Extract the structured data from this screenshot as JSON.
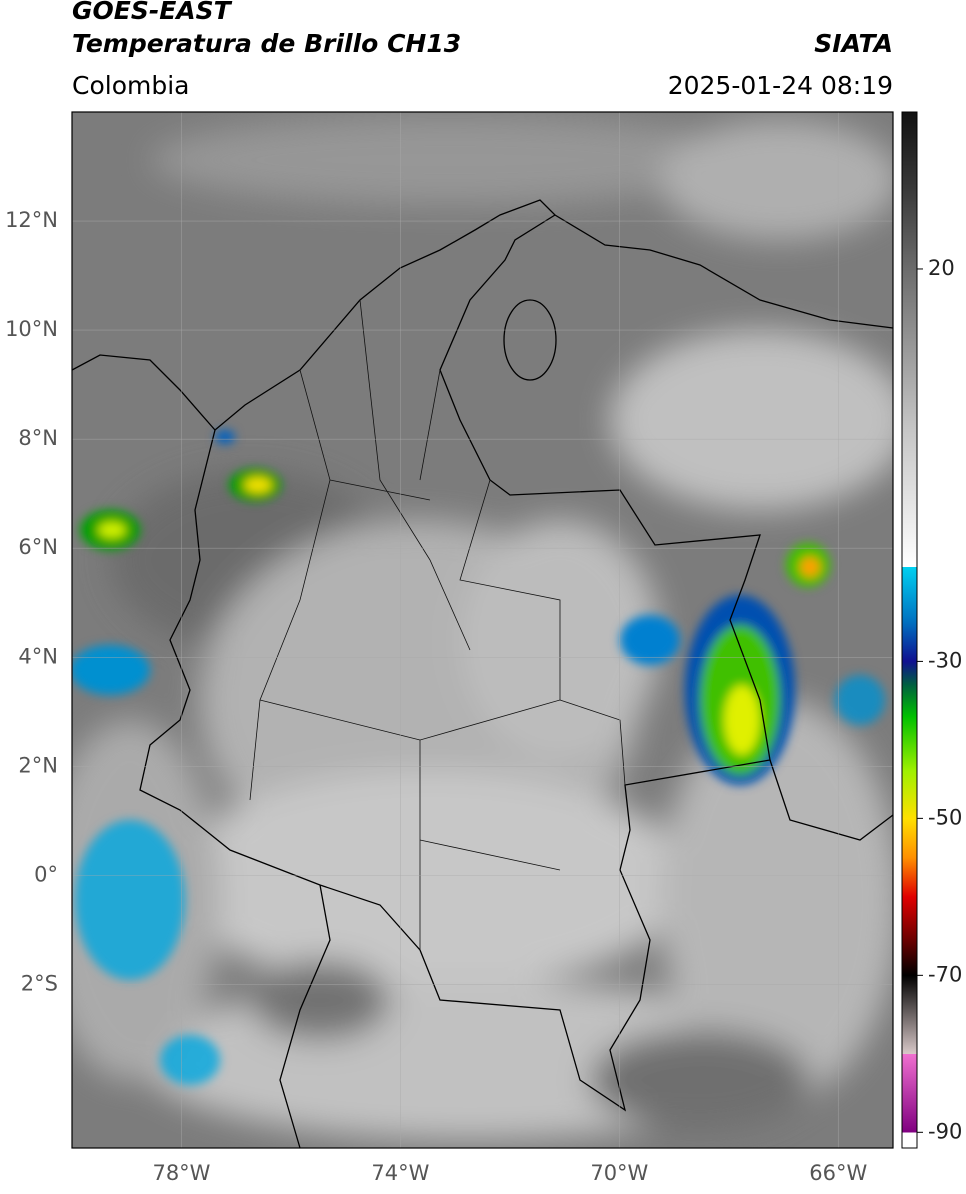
{
  "header": {
    "title": "GOES-EAST",
    "subtitle": "Temperatura de Brillo CH13",
    "source": "SIATA",
    "region": "Colombia",
    "datetime": "2025-01-24 08:19"
  },
  "map": {
    "lon_range": [
      -80,
      -65
    ],
    "lat_range": [
      -5,
      14
    ],
    "grid": true,
    "lat_ticks": [
      {
        "value": 12,
        "label": "12°N"
      },
      {
        "value": 10,
        "label": "10°N"
      },
      {
        "value": 8,
        "label": "8°N"
      },
      {
        "value": 6,
        "label": "6°N"
      },
      {
        "value": 4,
        "label": "4°N"
      },
      {
        "value": 2,
        "label": "2°N"
      },
      {
        "value": 0,
        "label": "0°"
      },
      {
        "value": -2,
        "label": "2°S"
      }
    ],
    "lon_ticks": [
      {
        "value": -78,
        "label": "78°W"
      },
      {
        "value": -74,
        "label": "74°W"
      },
      {
        "value": -70,
        "label": "70°W"
      },
      {
        "value": -66,
        "label": "66°W"
      }
    ]
  },
  "colorbar": {
    "range": [
      -92,
      40
    ],
    "ticks": [
      20,
      -30,
      -50,
      -70,
      -90
    ],
    "stops": [
      [
        40,
        "#111111"
      ],
      [
        30,
        "#3a3a3a"
      ],
      [
        20,
        "#6c6c6c"
      ],
      [
        0,
        "#c4c4c4"
      ],
      [
        -18,
        "#ffffff"
      ],
      [
        -18,
        "#00d0f0"
      ],
      [
        -25,
        "#0070c0"
      ],
      [
        -30,
        "#101090"
      ],
      [
        -33,
        "#006040"
      ],
      [
        -37,
        "#00c000"
      ],
      [
        -44,
        "#a0f000"
      ],
      [
        -50,
        "#ffe000"
      ],
      [
        -55,
        "#ff9000"
      ],
      [
        -60,
        "#e00000"
      ],
      [
        -66,
        "#600000"
      ],
      [
        -70,
        "#000000"
      ],
      [
        -80,
        "#d8c8c8"
      ],
      [
        -80,
        "#f070d0"
      ],
      [
        -90,
        "#800080"
      ],
      [
        -90,
        "#ffffff"
      ],
      [
        -92,
        "#ffffff"
      ]
    ]
  }
}
